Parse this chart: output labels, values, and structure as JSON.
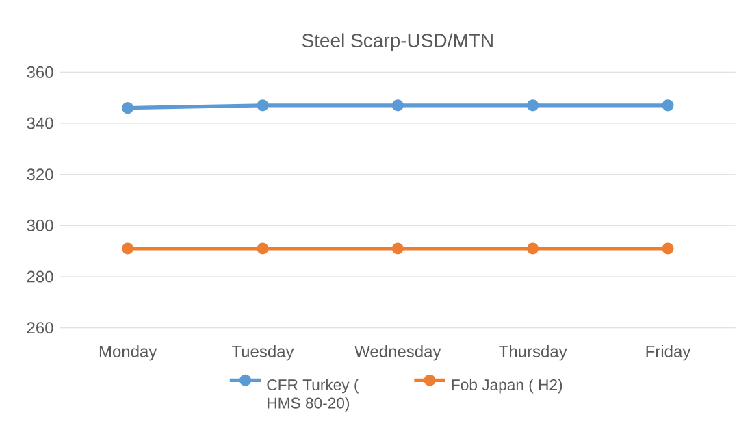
{
  "chart_data": {
    "type": "line",
    "title": "Steel Scarp-USD/MTN",
    "categories": [
      "Monday",
      "Tuesday",
      "Wednesday",
      "Thursday",
      "Friday"
    ],
    "series": [
      {
        "name": "CFR Turkey ( HMS 80-20)",
        "color": "#5b9bd5",
        "values": [
          346,
          347,
          347,
          347,
          347
        ]
      },
      {
        "name": "Fob Japan ( H2)",
        "color": "#ed7d31",
        "values": [
          291,
          291,
          291,
          291,
          291
        ]
      }
    ],
    "ylim": [
      260,
      360
    ],
    "yticks": [
      260,
      280,
      300,
      320,
      340,
      360
    ],
    "grid": "y",
    "legend": "bottom",
    "marker": "circle",
    "line_style": "solid"
  }
}
